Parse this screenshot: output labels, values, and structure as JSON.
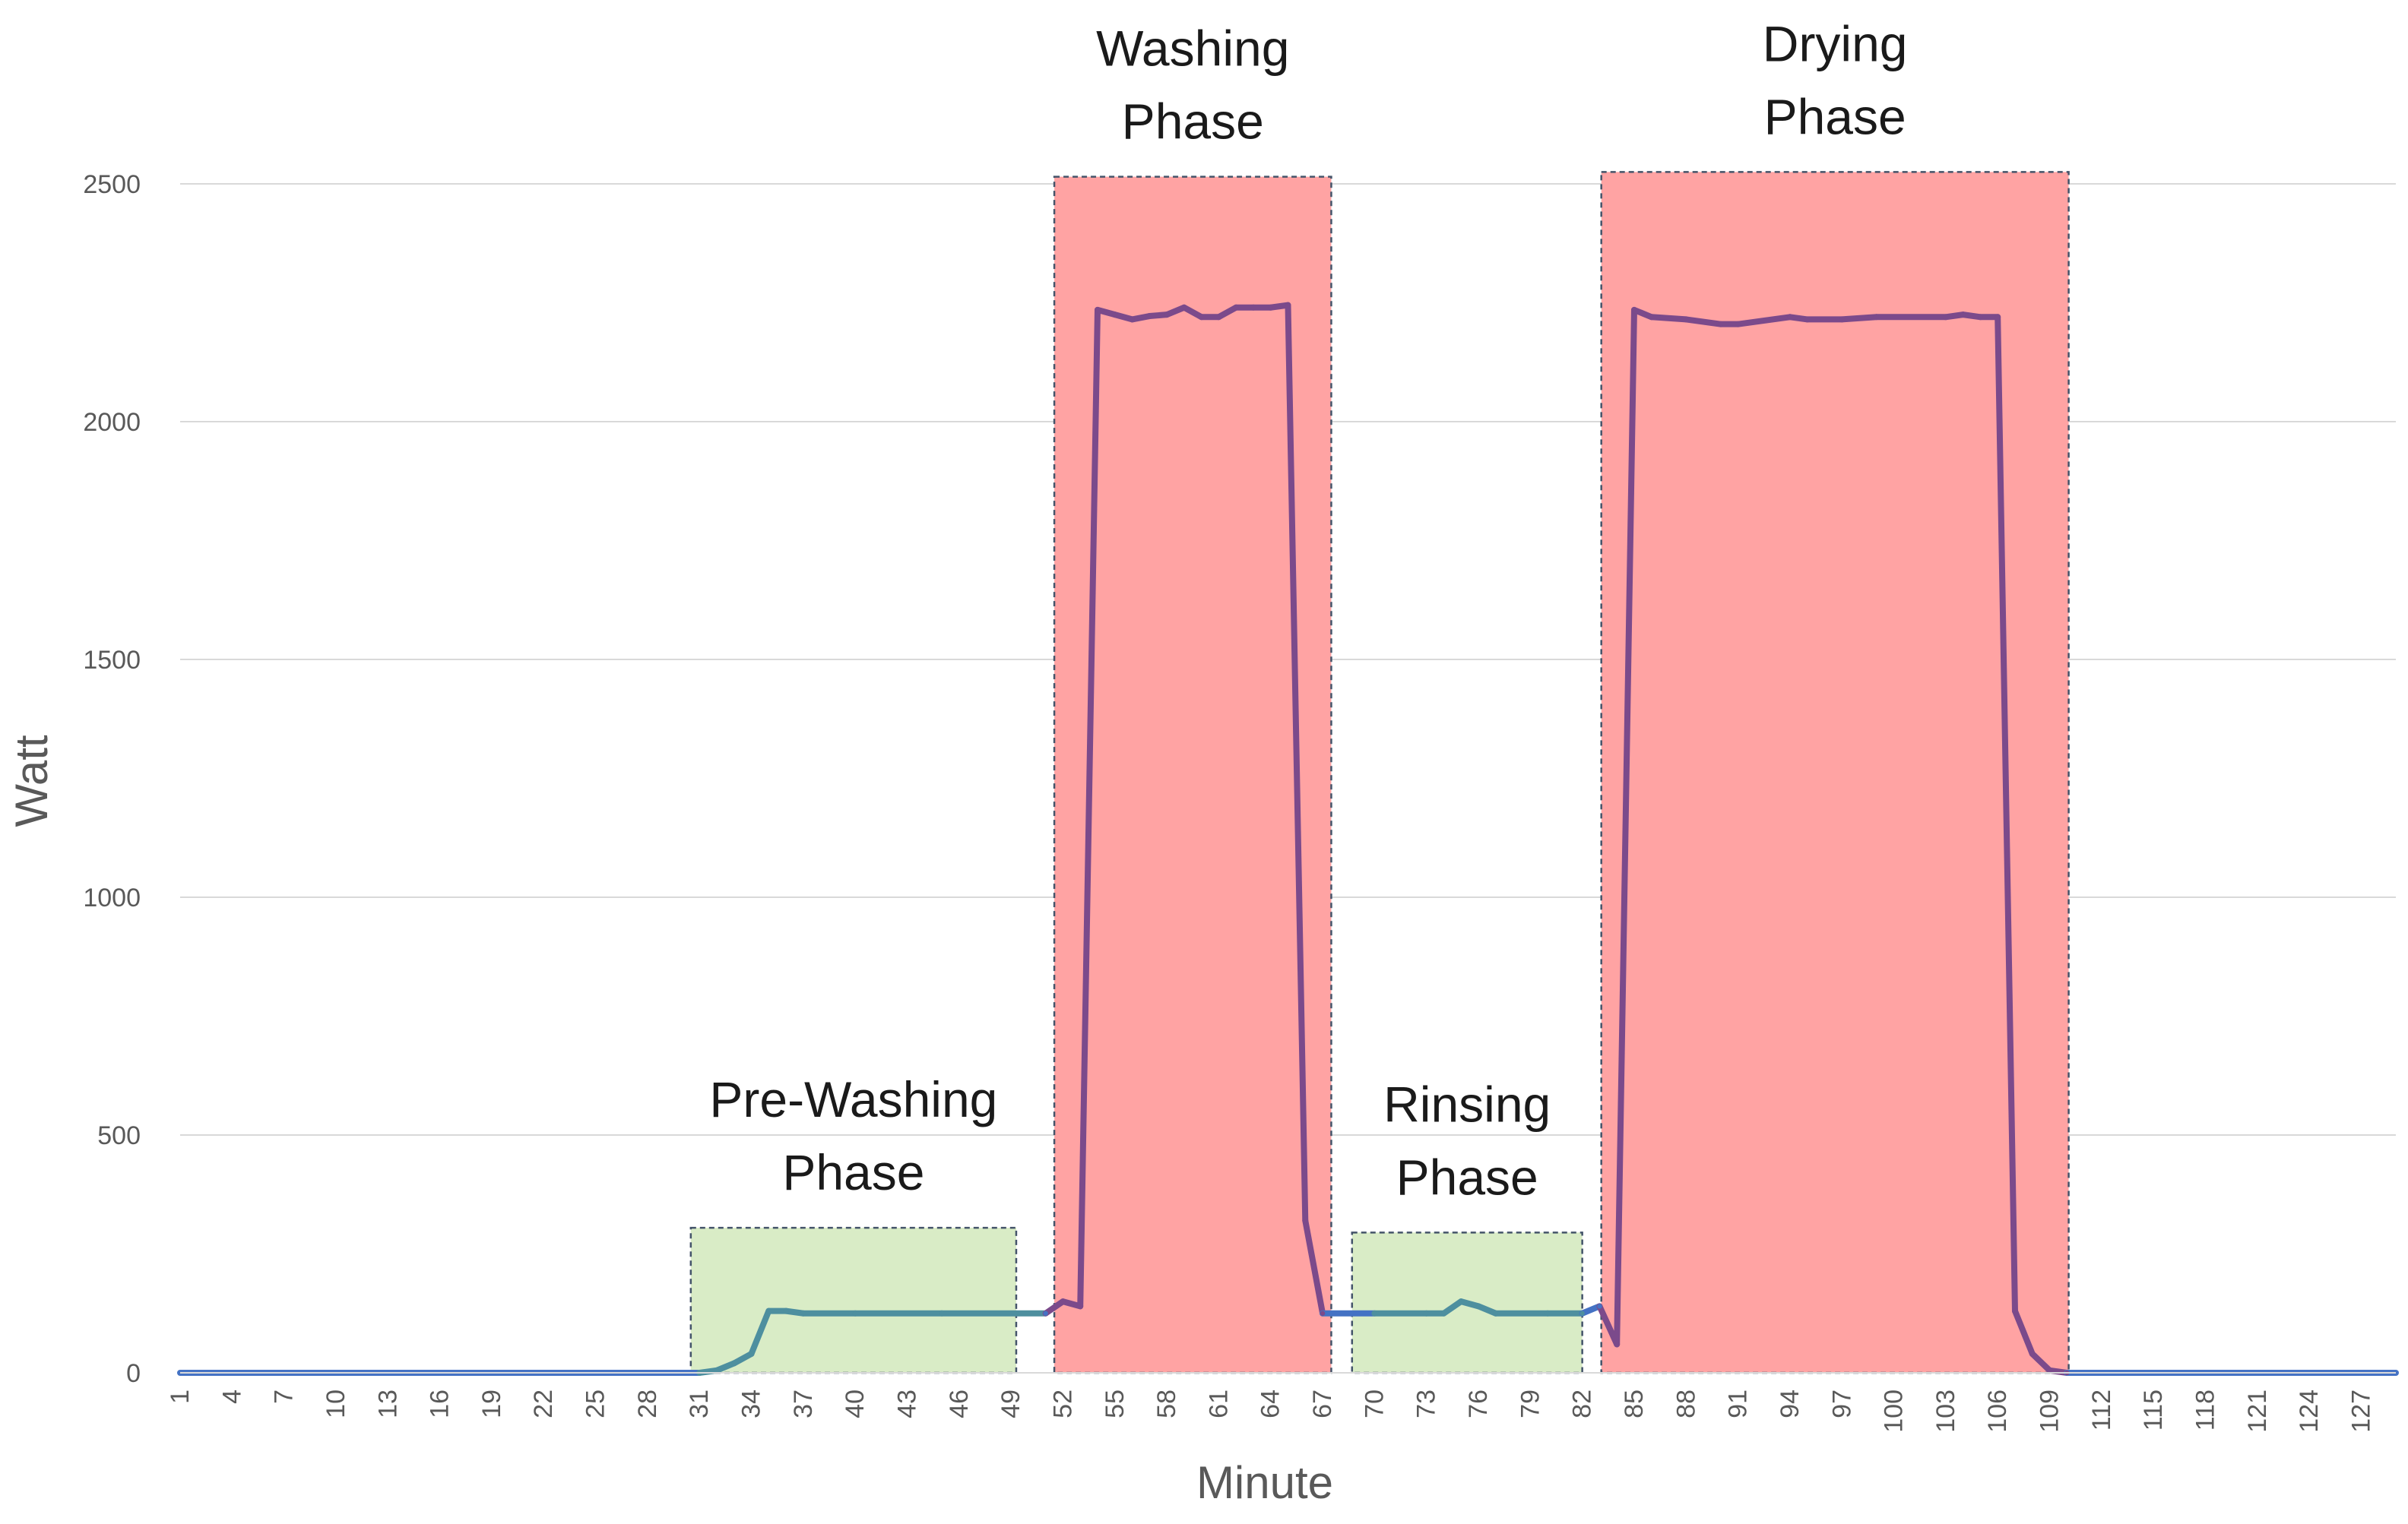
{
  "chart_data": {
    "type": "line",
    "title": "",
    "xlabel": "Minute",
    "ylabel": "Watt",
    "xlim": [
      1,
      129
    ],
    "ylim": [
      0,
      2500
    ],
    "y_ticks": [
      0,
      500,
      1000,
      1500,
      2000,
      2500
    ],
    "x_tick_labels": [
      1,
      4,
      7,
      10,
      13,
      16,
      19,
      22,
      25,
      28,
      31,
      34,
      37,
      40,
      43,
      46,
      49,
      52,
      55,
      58,
      61,
      64,
      67,
      70,
      73,
      76,
      79,
      82,
      85,
      88,
      91,
      94,
      97,
      100,
      103,
      106,
      109,
      112,
      115,
      118,
      121,
      124,
      127
    ],
    "grid": "horizontal",
    "legend": "none",
    "series": [
      {
        "color": "#4472C4",
        "points": [
          [
            1,
            0
          ],
          [
            31,
            0
          ],
          [
            32,
            5
          ],
          [
            33,
            20
          ],
          [
            34,
            40
          ],
          [
            35,
            130
          ],
          [
            36,
            130
          ],
          [
            37,
            125
          ],
          [
            40,
            125
          ],
          [
            45,
            125
          ],
          [
            51,
            125
          ],
          [
            52,
            150
          ],
          [
            53,
            140
          ],
          [
            54,
            2235
          ],
          [
            55,
            2225
          ],
          [
            56,
            2215
          ],
          [
            57,
            2222
          ],
          [
            58,
            2225
          ],
          [
            59,
            2240
          ],
          [
            60,
            2220
          ],
          [
            61,
            2220
          ],
          [
            62,
            2240
          ],
          [
            63,
            2240
          ],
          [
            64,
            2240
          ],
          [
            65,
            2245
          ],
          [
            66,
            320
          ],
          [
            67,
            125
          ],
          [
            70,
            125
          ],
          [
            73,
            125
          ],
          [
            74,
            125
          ],
          [
            75,
            150
          ],
          [
            76,
            140
          ],
          [
            77,
            125
          ],
          [
            80,
            125
          ],
          [
            82,
            125
          ],
          [
            83,
            140
          ],
          [
            84,
            60
          ],
          [
            85,
            2235
          ],
          [
            86,
            2220
          ],
          [
            88,
            2215
          ],
          [
            90,
            2205
          ],
          [
            91,
            2205
          ],
          [
            94,
            2220
          ],
          [
            95,
            2215
          ],
          [
            97,
            2215
          ],
          [
            99,
            2220
          ],
          [
            103,
            2220
          ],
          [
            104,
            2225
          ],
          [
            105,
            2220
          ],
          [
            106,
            2220
          ],
          [
            107,
            130
          ],
          [
            108,
            40
          ],
          [
            109,
            5
          ],
          [
            110,
            0
          ],
          [
            129,
            0
          ]
        ]
      }
    ],
    "phases": [
      {
        "name_line1": "Pre-Washing",
        "name_line2": "Phase",
        "x_start": 30.5,
        "x_end": 49.3,
        "y_top": 305,
        "color": "#D9ECC6"
      },
      {
        "name_line1": "Washing",
        "name_line2": "Phase",
        "x_start": 51.5,
        "x_end": 67.5,
        "y_top": 2515,
        "color": "#FFA3A3"
      },
      {
        "name_line1": "Rinsing",
        "name_line2": "Phase",
        "x_start": 68.7,
        "x_end": 82.0,
        "y_top": 295,
        "color": "#D9ECC6"
      },
      {
        "name_line1": "Drying",
        "name_line2": "Phase",
        "x_start": 83.1,
        "x_end": 110.1,
        "y_top": 2525,
        "color": "#FFA3A3"
      }
    ]
  }
}
